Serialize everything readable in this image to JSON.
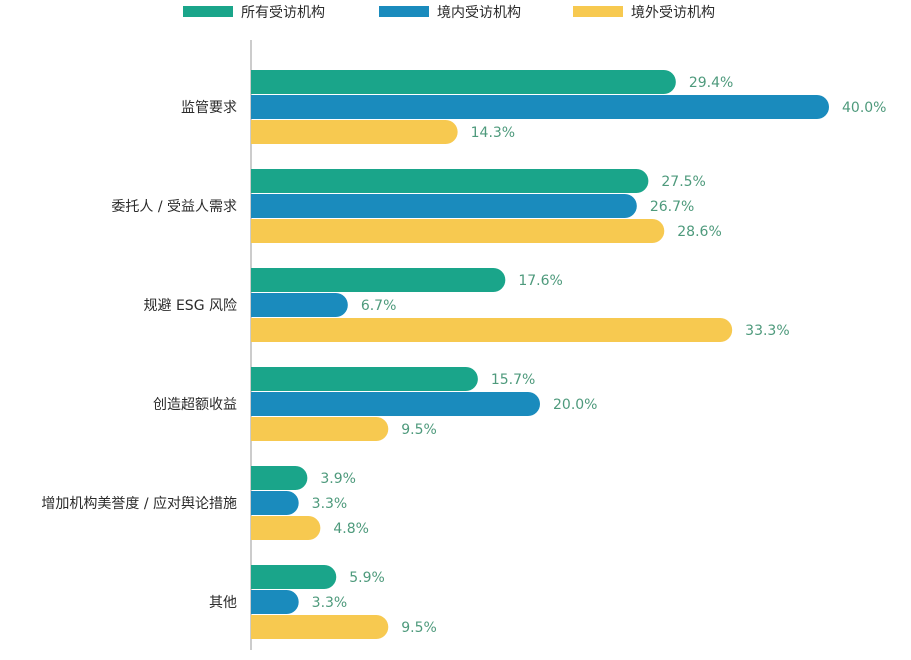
{
  "chart_data": {
    "type": "bar",
    "orientation": "horizontal",
    "categories": [
      "监管要求",
      "委托人 / 受益人需求",
      "规避 ESG 风险",
      "创造超额收益",
      "增加机构美誉度 / 应对舆论措施",
      "其他"
    ],
    "series": [
      {
        "name": "所有受访机构",
        "values": [
          29.4,
          27.5,
          17.6,
          15.7,
          3.9,
          5.9
        ],
        "labels": [
          "29.4%",
          "27.5%",
          "17.6%",
          "15.7%",
          "3.9%",
          "5.9%"
        ],
        "color": "#1aa58a"
      },
      {
        "name": "境内受访机构",
        "values": [
          40.0,
          26.7,
          6.7,
          20.0,
          3.3,
          3.3
        ],
        "labels": [
          "40.0%",
          "26.7%",
          "6.7%",
          "20.0%",
          "3.3%",
          "3.3%"
        ],
        "color": "#1a8bbd"
      },
      {
        "name": "境外受访机构",
        "values": [
          14.3,
          28.6,
          33.3,
          9.5,
          4.8,
          9.5
        ],
        "labels": [
          "14.3%",
          "28.6%",
          "33.3%",
          "9.5%",
          "4.8%",
          "9.5%"
        ],
        "color": "#f7c950"
      }
    ],
    "value_unit": "%",
    "xlim": [
      0,
      40
    ],
    "legend_position": "top",
    "grid": false,
    "label_color": "#4e9a7c"
  }
}
